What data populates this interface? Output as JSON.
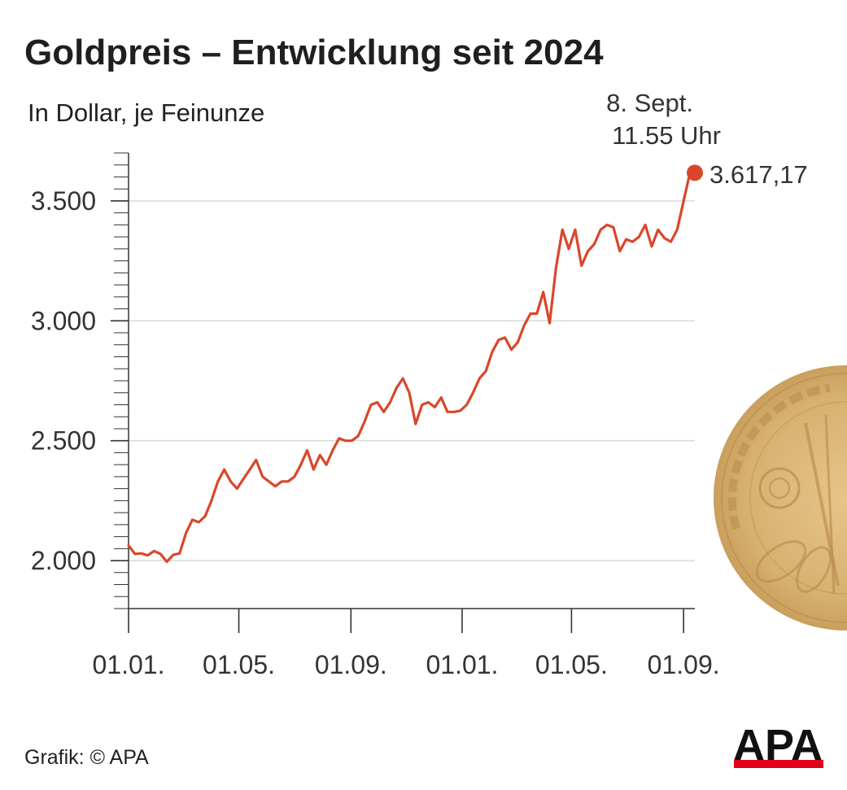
{
  "title": "Goldpreis – Entwicklung seit 2024",
  "subtitle": "In Dollar, je Feinunze",
  "source": "Grafik: © APA",
  "logo": "APA",
  "colors": {
    "line": "#d9472b",
    "grid": "#d9d9d9",
    "axis": "#333333",
    "coin": "#d8b170",
    "logo_bar": "#e2001a"
  },
  "chart_data": {
    "type": "line",
    "title": "Goldpreis – Entwicklung seit 2024",
    "subtitle": "In Dollar, je Feinunze",
    "xlabel": "",
    "ylabel": "",
    "y_ticks": [
      2000,
      2500,
      3000,
      3500
    ],
    "y_tick_labels": [
      "2.000",
      "2.500",
      "3.000",
      "3.500"
    ],
    "ylim": [
      1800,
      3700
    ],
    "x_ticks": [
      "2024-01-01",
      "2024-05-01",
      "2024-09-01",
      "2025-01-01",
      "2025-05-01",
      "2025-09-01"
    ],
    "x_tick_labels": [
      "01.01.",
      "01.05.",
      "01.09.",
      "01.01.",
      "01.05.",
      "01.09."
    ],
    "xlim": [
      "2024-01-01",
      "2025-09-08"
    ],
    "grid": true,
    "series": [
      {
        "points": [
          [
            "2024-01-01",
            2063
          ],
          [
            "2024-01-08",
            2028
          ],
          [
            "2024-01-15",
            2030
          ],
          [
            "2024-01-22",
            2022
          ],
          [
            "2024-01-29",
            2040
          ],
          [
            "2024-02-05",
            2028
          ],
          [
            "2024-02-12",
            1995
          ],
          [
            "2024-02-19",
            2024
          ],
          [
            "2024-02-26",
            2030
          ],
          [
            "2024-03-04",
            2115
          ],
          [
            "2024-03-11",
            2170
          ],
          [
            "2024-03-18",
            2160
          ],
          [
            "2024-03-25",
            2185
          ],
          [
            "2024-04-01",
            2250
          ],
          [
            "2024-04-08",
            2330
          ],
          [
            "2024-04-15",
            2380
          ],
          [
            "2024-04-22",
            2330
          ],
          [
            "2024-04-29",
            2300
          ],
          [
            "2024-05-06",
            2340
          ],
          [
            "2024-05-13",
            2380
          ],
          [
            "2024-05-20",
            2420
          ],
          [
            "2024-05-27",
            2350
          ],
          [
            "2024-06-03",
            2330
          ],
          [
            "2024-06-10",
            2310
          ],
          [
            "2024-06-17",
            2330
          ],
          [
            "2024-06-24",
            2330
          ],
          [
            "2024-07-01",
            2350
          ],
          [
            "2024-07-08",
            2400
          ],
          [
            "2024-07-15",
            2460
          ],
          [
            "2024-07-22",
            2380
          ],
          [
            "2024-07-29",
            2440
          ],
          [
            "2024-08-05",
            2400
          ],
          [
            "2024-08-12",
            2460
          ],
          [
            "2024-08-19",
            2510
          ],
          [
            "2024-08-26",
            2500
          ],
          [
            "2024-09-02",
            2500
          ],
          [
            "2024-09-09",
            2520
          ],
          [
            "2024-09-16",
            2580
          ],
          [
            "2024-09-23",
            2650
          ],
          [
            "2024-09-30",
            2660
          ],
          [
            "2024-10-07",
            2620
          ],
          [
            "2024-10-14",
            2660
          ],
          [
            "2024-10-21",
            2720
          ],
          [
            "2024-10-28",
            2760
          ],
          [
            "2024-11-04",
            2700
          ],
          [
            "2024-11-11",
            2570
          ],
          [
            "2024-11-18",
            2650
          ],
          [
            "2024-11-25",
            2660
          ],
          [
            "2024-12-02",
            2640
          ],
          [
            "2024-12-09",
            2680
          ],
          [
            "2024-12-16",
            2620
          ],
          [
            "2024-12-23",
            2620
          ],
          [
            "2024-12-30",
            2625
          ],
          [
            "2025-01-06",
            2650
          ],
          [
            "2025-01-13",
            2700
          ],
          [
            "2025-01-20",
            2760
          ],
          [
            "2025-01-27",
            2790
          ],
          [
            "2025-02-03",
            2870
          ],
          [
            "2025-02-10",
            2920
          ],
          [
            "2025-02-17",
            2930
          ],
          [
            "2025-02-24",
            2880
          ],
          [
            "2025-03-03",
            2910
          ],
          [
            "2025-03-10",
            2980
          ],
          [
            "2025-03-17",
            3030
          ],
          [
            "2025-03-24",
            3030
          ],
          [
            "2025-03-31",
            3120
          ],
          [
            "2025-04-07",
            2990
          ],
          [
            "2025-04-14",
            3220
          ],
          [
            "2025-04-21",
            3380
          ],
          [
            "2025-04-28",
            3300
          ],
          [
            "2025-05-05",
            3380
          ],
          [
            "2025-05-12",
            3230
          ],
          [
            "2025-05-19",
            3290
          ],
          [
            "2025-05-26",
            3320
          ],
          [
            "2025-06-02",
            3380
          ],
          [
            "2025-06-09",
            3400
          ],
          [
            "2025-06-16",
            3390
          ],
          [
            "2025-06-23",
            3290
          ],
          [
            "2025-06-30",
            3340
          ],
          [
            "2025-07-07",
            3330
          ],
          [
            "2025-07-14",
            3350
          ],
          [
            "2025-07-21",
            3400
          ],
          [
            "2025-07-28",
            3310
          ],
          [
            "2025-08-04",
            3380
          ],
          [
            "2025-08-11",
            3345
          ],
          [
            "2025-08-18",
            3330
          ],
          [
            "2025-08-25",
            3380
          ],
          [
            "2025-09-01",
            3500
          ],
          [
            "2025-09-08",
            3617.17
          ]
        ]
      }
    ],
    "annotations": [
      {
        "date_label": "8. Sept.",
        "time_label": "11.55 Uhr",
        "value_label": "3.617,17",
        "x": "2025-09-08",
        "y": 3617.17
      }
    ]
  }
}
